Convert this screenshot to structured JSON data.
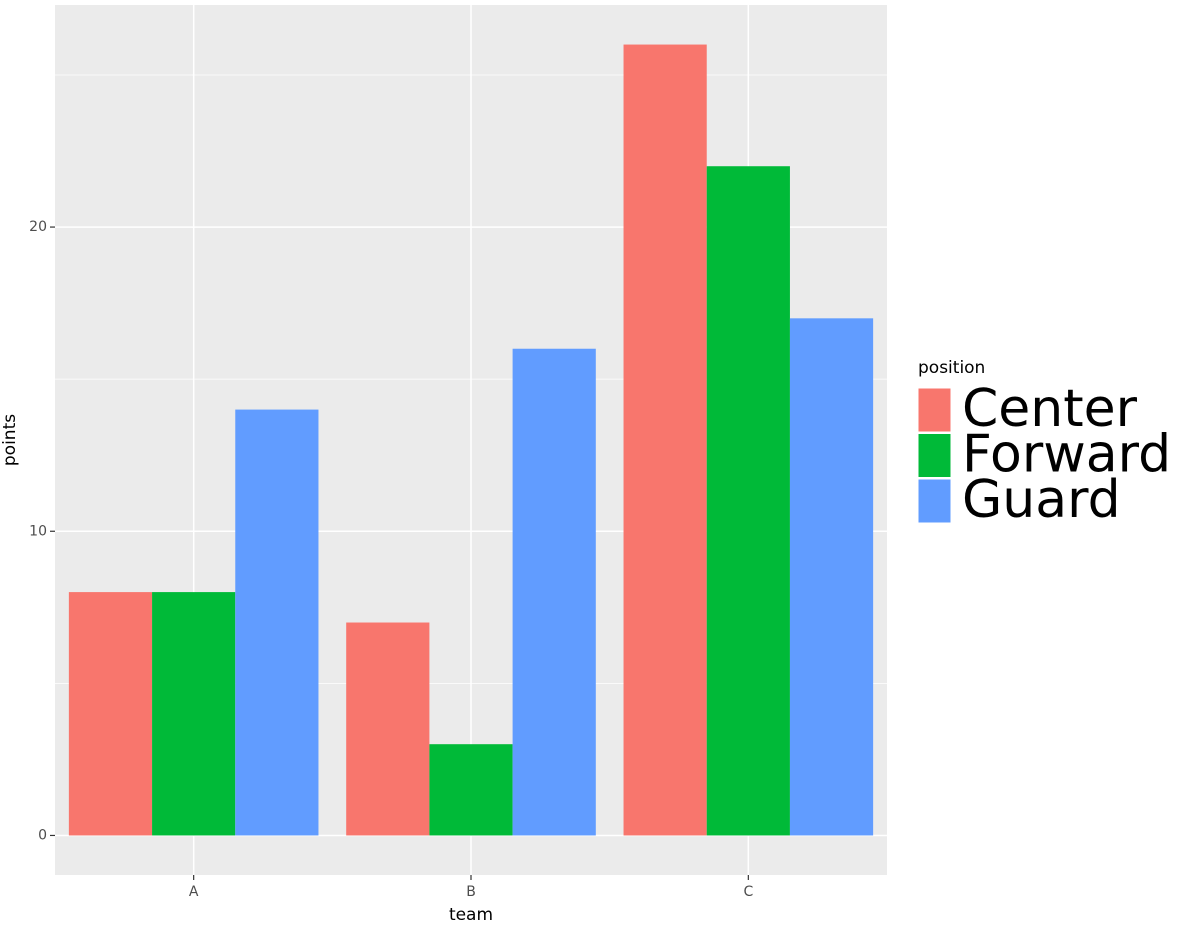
{
  "chart_data": {
    "type": "bar",
    "categories": [
      "A",
      "B",
      "C"
    ],
    "series": [
      {
        "name": "Center",
        "color": "#f8766d",
        "values": [
          8,
          7,
          26
        ]
      },
      {
        "name": "Forward",
        "color": "#00ba38",
        "values": [
          8,
          3,
          22
        ]
      },
      {
        "name": "Guard",
        "color": "#619cff",
        "values": [
          14,
          16,
          17
        ]
      }
    ],
    "x_label": "team",
    "y_label": "points",
    "legend_title": "position",
    "ylim": [
      -1.3,
      27.3
    ],
    "yticks": [
      0,
      10,
      20
    ],
    "yticks_minor": [
      5,
      15,
      25
    ],
    "grid": true,
    "legend_position": "right"
  }
}
